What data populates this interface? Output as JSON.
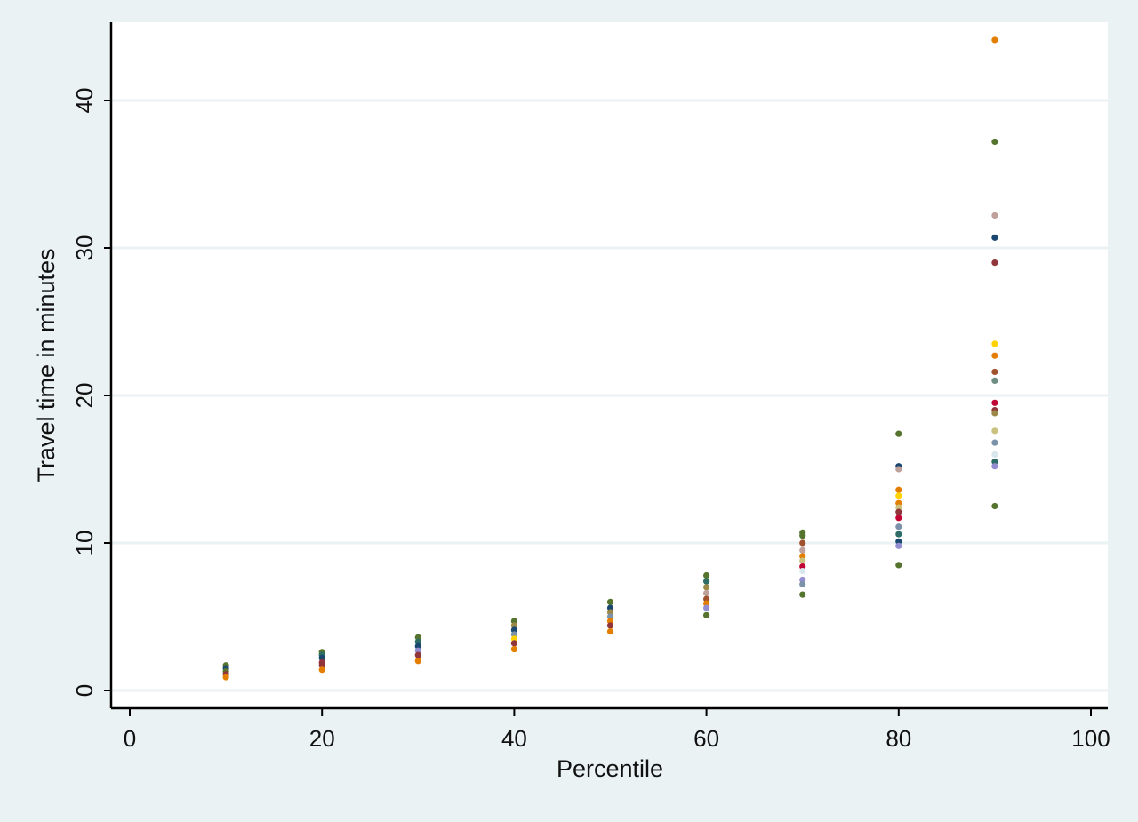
{
  "chart_data": {
    "type": "scatter",
    "title": "",
    "xlabel": "Percentile",
    "ylabel": "Travel time in minutes",
    "xlim": [
      0,
      100
    ],
    "ylim": [
      0,
      45
    ],
    "x_ticks": [
      "0",
      "20",
      "40",
      "60",
      "80",
      "100"
    ],
    "y_ticks": [
      "0",
      "10",
      "20",
      "30",
      "40"
    ],
    "grid": "horizontal",
    "legend": "none",
    "colors": {
      "background": "#eaf2f3",
      "plot_background": "#ffffff",
      "gridline": "#eaf2f3",
      "axis": "#000000",
      "palette": [
        "#1a476f",
        "#90353b",
        "#55752f",
        "#e37e00",
        "#6e8e84",
        "#c10534",
        "#938dd2",
        "#cac27e",
        "#a0522d",
        "#7b92a8",
        "#2d6d66",
        "#9c8847",
        "#bfa19c",
        "#ffd200",
        "#d9e6eb"
      ]
    },
    "points": [
      {
        "x": 10,
        "y": 1.7,
        "color": "#55752f"
      },
      {
        "x": 10,
        "y": 1.5,
        "color": "#1a476f"
      },
      {
        "x": 10,
        "y": 1.3,
        "color": "#55752f"
      },
      {
        "x": 10,
        "y": 1.1,
        "color": "#90353b"
      },
      {
        "x": 10,
        "y": 0.9,
        "color": "#e37e00"
      },
      {
        "x": 20,
        "y": 2.6,
        "color": "#55752f"
      },
      {
        "x": 20,
        "y": 2.4,
        "color": "#2d6d66"
      },
      {
        "x": 20,
        "y": 2.2,
        "color": "#1a476f"
      },
      {
        "x": 20,
        "y": 1.9,
        "color": "#90353b"
      },
      {
        "x": 20,
        "y": 1.7,
        "color": "#90353b"
      },
      {
        "x": 20,
        "y": 1.4,
        "color": "#e37e00"
      },
      {
        "x": 30,
        "y": 3.6,
        "color": "#55752f"
      },
      {
        "x": 30,
        "y": 3.3,
        "color": "#2d6d66"
      },
      {
        "x": 30,
        "y": 3.0,
        "color": "#1a476f"
      },
      {
        "x": 30,
        "y": 2.7,
        "color": "#938dd2"
      },
      {
        "x": 30,
        "y": 2.4,
        "color": "#90353b"
      },
      {
        "x": 30,
        "y": 2.0,
        "color": "#e37e00"
      },
      {
        "x": 40,
        "y": 4.7,
        "color": "#55752f"
      },
      {
        "x": 40,
        "y": 4.4,
        "color": "#9c8847"
      },
      {
        "x": 40,
        "y": 4.1,
        "color": "#1a476f"
      },
      {
        "x": 40,
        "y": 3.8,
        "color": "#7b92a8"
      },
      {
        "x": 40,
        "y": 3.5,
        "color": "#ffd200"
      },
      {
        "x": 40,
        "y": 3.2,
        "color": "#90353b"
      },
      {
        "x": 40,
        "y": 2.8,
        "color": "#e37e00"
      },
      {
        "x": 50,
        "y": 6.0,
        "color": "#55752f"
      },
      {
        "x": 50,
        "y": 5.6,
        "color": "#1a476f"
      },
      {
        "x": 50,
        "y": 5.3,
        "color": "#9c8847"
      },
      {
        "x": 50,
        "y": 5.0,
        "color": "#7b92a8"
      },
      {
        "x": 50,
        "y": 4.7,
        "color": "#e37e00"
      },
      {
        "x": 50,
        "y": 4.4,
        "color": "#90353b"
      },
      {
        "x": 50,
        "y": 4.0,
        "color": "#e37e00"
      },
      {
        "x": 60,
        "y": 7.8,
        "color": "#55752f"
      },
      {
        "x": 60,
        "y": 7.4,
        "color": "#2d6d66"
      },
      {
        "x": 60,
        "y": 7.0,
        "color": "#9c8847"
      },
      {
        "x": 60,
        "y": 6.6,
        "color": "#bfa19c"
      },
      {
        "x": 60,
        "y": 6.2,
        "color": "#a0522d"
      },
      {
        "x": 60,
        "y": 5.9,
        "color": "#e37e00"
      },
      {
        "x": 60,
        "y": 5.6,
        "color": "#938dd2"
      },
      {
        "x": 60,
        "y": 5.1,
        "color": "#55752f"
      },
      {
        "x": 70,
        "y": 10.7,
        "color": "#55752f"
      },
      {
        "x": 70,
        "y": 10.5,
        "color": "#55752f"
      },
      {
        "x": 70,
        "y": 10.0,
        "color": "#a0522d"
      },
      {
        "x": 70,
        "y": 9.5,
        "color": "#bfa19c"
      },
      {
        "x": 70,
        "y": 9.1,
        "color": "#e37e00"
      },
      {
        "x": 70,
        "y": 8.8,
        "color": "#cac27e"
      },
      {
        "x": 70,
        "y": 8.4,
        "color": "#c10534"
      },
      {
        "x": 70,
        "y": 8.1,
        "color": "#d9e6eb"
      },
      {
        "x": 70,
        "y": 7.5,
        "color": "#938dd2"
      },
      {
        "x": 70,
        "y": 7.2,
        "color": "#7b92a8"
      },
      {
        "x": 70,
        "y": 6.5,
        "color": "#55752f"
      },
      {
        "x": 80,
        "y": 17.4,
        "color": "#55752f"
      },
      {
        "x": 80,
        "y": 15.2,
        "color": "#1a476f"
      },
      {
        "x": 80,
        "y": 15.0,
        "color": "#bfa19c"
      },
      {
        "x": 80,
        "y": 13.6,
        "color": "#e37e00"
      },
      {
        "x": 80,
        "y": 13.2,
        "color": "#ffd200"
      },
      {
        "x": 80,
        "y": 12.7,
        "color": "#e37e00"
      },
      {
        "x": 80,
        "y": 12.4,
        "color": "#cac27e"
      },
      {
        "x": 80,
        "y": 12.1,
        "color": "#90353b"
      },
      {
        "x": 80,
        "y": 11.7,
        "color": "#c10534"
      },
      {
        "x": 80,
        "y": 11.1,
        "color": "#7b92a8"
      },
      {
        "x": 80,
        "y": 10.6,
        "color": "#2d6d66"
      },
      {
        "x": 80,
        "y": 10.1,
        "color": "#1a476f"
      },
      {
        "x": 80,
        "y": 9.8,
        "color": "#938dd2"
      },
      {
        "x": 80,
        "y": 8.5,
        "color": "#55752f"
      },
      {
        "x": 90,
        "y": 44.1,
        "color": "#e37e00"
      },
      {
        "x": 90,
        "y": 37.2,
        "color": "#55752f"
      },
      {
        "x": 90,
        "y": 32.2,
        "color": "#bfa19c"
      },
      {
        "x": 90,
        "y": 30.7,
        "color": "#1a476f"
      },
      {
        "x": 90,
        "y": 29.0,
        "color": "#90353b"
      },
      {
        "x": 90,
        "y": 23.5,
        "color": "#ffd200"
      },
      {
        "x": 90,
        "y": 22.7,
        "color": "#e37e00"
      },
      {
        "x": 90,
        "y": 21.6,
        "color": "#a0522d"
      },
      {
        "x": 90,
        "y": 21.0,
        "color": "#6e8e84"
      },
      {
        "x": 90,
        "y": 19.5,
        "color": "#c10534"
      },
      {
        "x": 90,
        "y": 19.0,
        "color": "#90353b"
      },
      {
        "x": 90,
        "y": 18.8,
        "color": "#9c8847"
      },
      {
        "x": 90,
        "y": 17.6,
        "color": "#cac27e"
      },
      {
        "x": 90,
        "y": 16.8,
        "color": "#7b92a8"
      },
      {
        "x": 90,
        "y": 16.0,
        "color": "#d9e6eb"
      },
      {
        "x": 90,
        "y": 15.5,
        "color": "#2d6d66"
      },
      {
        "x": 90,
        "y": 15.2,
        "color": "#938dd2"
      },
      {
        "x": 90,
        "y": 12.5,
        "color": "#55752f"
      }
    ]
  }
}
